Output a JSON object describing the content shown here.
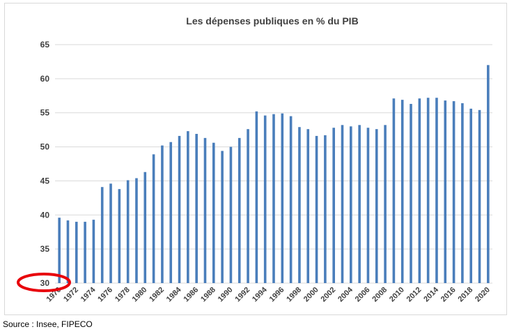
{
  "chart_data": {
    "type": "bar",
    "title": "Les dépenses publiques  en % du PIB",
    "xlabel": "",
    "ylabel": "",
    "ylim": [
      30,
      65
    ],
    "yticks": [
      "30",
      "35",
      "40",
      "45",
      "50",
      "55",
      "60",
      "65"
    ],
    "grid": true,
    "legend": "none",
    "bar_color": "#4a7ebb",
    "grid_color": "#d9d9d9",
    "categories": [
      "1970",
      "1971",
      "1972",
      "1973",
      "1974",
      "1975",
      "1976",
      "1977",
      "1978",
      "1979",
      "1980",
      "1981",
      "1982",
      "1983",
      "1984",
      "1985",
      "1986",
      "1987",
      "1988",
      "1989",
      "1990",
      "1991",
      "1992",
      "1993",
      "1994",
      "1995",
      "1996",
      "1997",
      "1998",
      "1999",
      "2000",
      "2001",
      "2002",
      "2003",
      "2004",
      "2005",
      "2006",
      "2007",
      "2008",
      "2009",
      "2010",
      "2011",
      "2012",
      "2013",
      "2014",
      "2015",
      "2016",
      "2017",
      "2018",
      "2019",
      "2020"
    ],
    "xtick_labels": [
      "1970",
      "1972",
      "1974",
      "1976",
      "1978",
      "1980",
      "1982",
      "1984",
      "1986",
      "1988",
      "1990",
      "1992",
      "1994",
      "1996",
      "1998",
      "2000",
      "2002",
      "2004",
      "2006",
      "2008",
      "2010",
      "2012",
      "2014",
      "2016",
      "2018",
      "2020"
    ],
    "values": [
      39.6,
      39.2,
      39.0,
      39.0,
      39.3,
      44.1,
      44.6,
      43.8,
      45.1,
      45.4,
      46.3,
      48.9,
      50.2,
      50.7,
      51.6,
      52.3,
      51.9,
      51.3,
      50.6,
      49.4,
      50.0,
      51.3,
      52.6,
      55.2,
      54.6,
      54.8,
      54.9,
      54.5,
      52.9,
      52.6,
      51.6,
      51.7,
      52.8,
      53.2,
      53.0,
      53.2,
      52.8,
      52.6,
      53.2,
      57.1,
      56.9,
      56.3,
      57.1,
      57.2,
      57.2,
      56.8,
      56.7,
      56.4,
      55.6,
      55.4,
      62.0
    ],
    "annotation": {
      "type": "ellipse",
      "target": "30",
      "color": "#e8000a"
    }
  },
  "footer": {
    "source": "Source : Insee, FIPECO"
  }
}
